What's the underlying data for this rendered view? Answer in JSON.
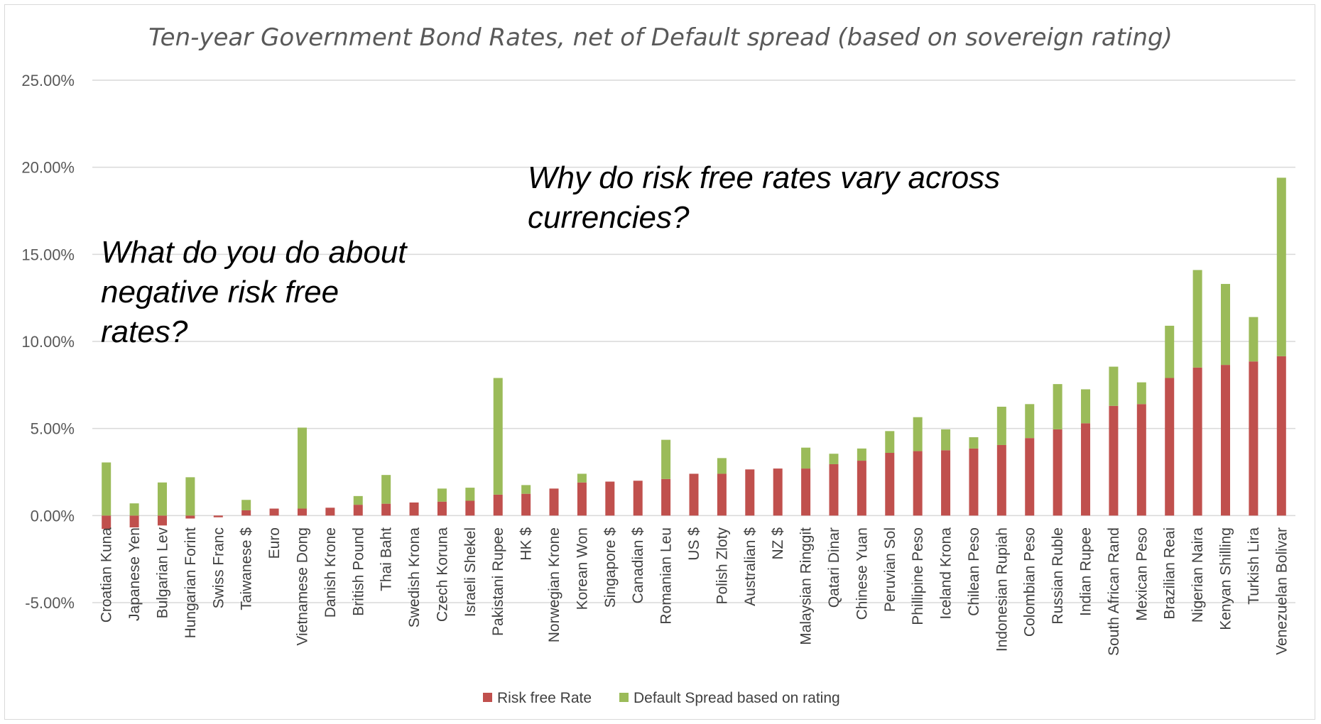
{
  "chart_data": {
    "type": "bar",
    "stacked": true,
    "title": "Ten-year Government Bond Rates, net of Default spread (based on sovereign rating)",
    "xlabel": "",
    "ylabel": "",
    "ylim": [
      -0.05,
      0.25
    ],
    "yticks": [
      {
        "value": 0.25,
        "label": "25.00%"
      },
      {
        "value": 0.2,
        "label": "20.00%"
      },
      {
        "value": 0.15,
        "label": "15.00%"
      },
      {
        "value": 0.1,
        "label": "10.00%"
      },
      {
        "value": 0.05,
        "label": "5.00%"
      },
      {
        "value": 0.0,
        "label": "0.00%"
      },
      {
        "value": -0.05,
        "label": "-5.00%"
      }
    ],
    "grid": true,
    "legend_position": "bottom",
    "categories": [
      "Croatian Kuna",
      "Japanese Yen",
      "Bulgarian Lev",
      "Hungarian Forint",
      "Swiss Franc",
      "Taiwanese $",
      "Euro",
      "Vietnamese Dong",
      "Danish Krone",
      "British Pound",
      "Thai Baht",
      "Swedish Krona",
      "Czech Koruna",
      "Israeli Shekel",
      "Pakistani Rupee",
      "HK $",
      "Norwegian Krone",
      "Korean Won",
      "Singapore $",
      "Canadian $",
      "Romanian Leu",
      "US $",
      "Polish Zloty",
      "Australian $",
      "NZ $",
      "Malaysian Ringgit",
      "Qatari Dinar",
      "Chinese Yuan",
      "Peruvian Sol",
      "Phillipine Peso",
      "Iceland Krona",
      "Chilean Peso",
      "Indonesian Rupiah",
      "Colombian Peso",
      "Russian Ruble",
      "Indian Rupee",
      "South African Rand",
      "Mexican Peso",
      "Brazilian Reai",
      "Nigerian Naira",
      "Kenyan Shilling",
      "Turkish Lira",
      "Venezuelan Bolivar"
    ],
    "series": [
      {
        "name": "Risk free Rate",
        "color": "#c0504d",
        "values": [
          -0.0077,
          -0.0068,
          -0.0057,
          -0.0017,
          -0.001,
          0.003,
          0.004,
          0.004,
          0.0045,
          0.0062,
          0.0068,
          0.0075,
          0.008,
          0.0085,
          0.012,
          0.0125,
          0.0155,
          0.019,
          0.0195,
          0.02,
          0.021,
          0.024,
          0.024,
          0.0265,
          0.027,
          0.027,
          0.0295,
          0.0315,
          0.036,
          0.037,
          0.0375,
          0.0385,
          0.0405,
          0.0445,
          0.0495,
          0.053,
          0.063,
          0.064,
          0.079,
          0.085,
          0.0865,
          0.0885,
          0.0915
        ]
      },
      {
        "name": "Default Spread based on rating",
        "color": "#9bbb59",
        "values": [
          0.0305,
          0.007,
          0.019,
          0.022,
          0.0,
          0.006,
          0.0,
          0.0465,
          0.0,
          0.005,
          0.0165,
          0.0,
          0.0075,
          0.0075,
          0.067,
          0.005,
          0.0,
          0.005,
          0.0,
          0.0,
          0.0225,
          0.0,
          0.009,
          0.0,
          0.0,
          0.012,
          0.006,
          0.007,
          0.0125,
          0.0195,
          0.012,
          0.0065,
          0.022,
          0.0195,
          0.026,
          0.0195,
          0.0225,
          0.0125,
          0.03,
          0.056,
          0.0465,
          0.0255,
          0.1025
        ]
      }
    ],
    "annotations": [
      {
        "lines": [
          "Why do risk free rates vary across",
          "currencies?"
        ]
      },
      {
        "lines": [
          "What do you do about",
          "negative risk free",
          "rates?"
        ]
      }
    ]
  }
}
